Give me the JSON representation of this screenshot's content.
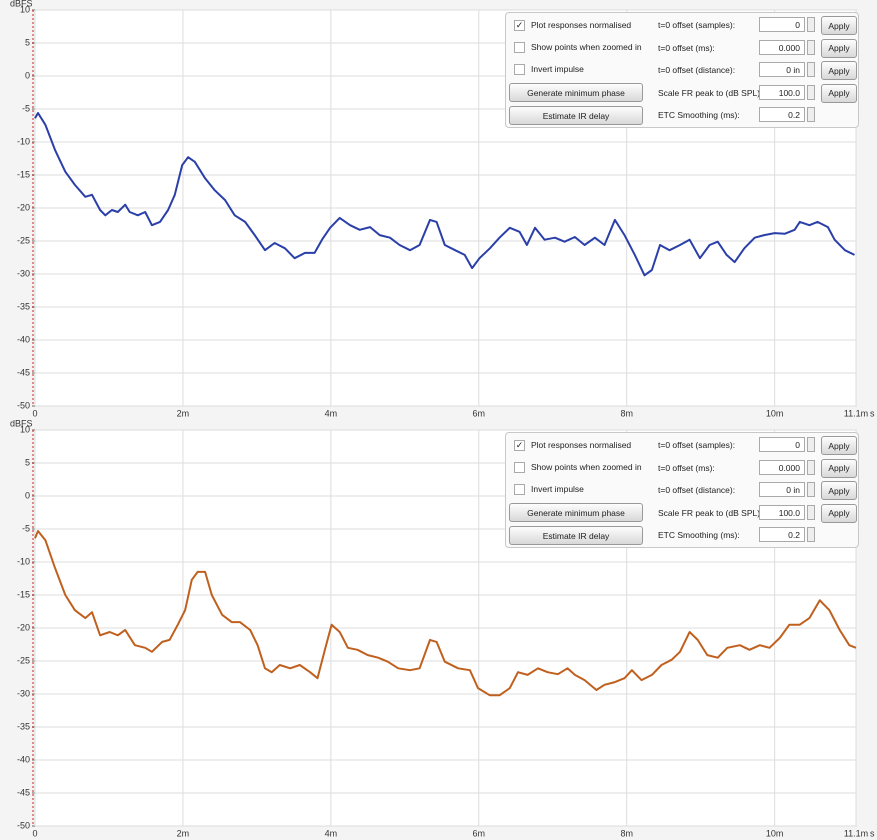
{
  "chart_data": [
    {
      "type": "line",
      "y_label": "dBFS",
      "x_label": "s",
      "xlim": [
        0,
        11.1
      ],
      "ylim": [
        -50,
        10
      ],
      "xticks": [
        0,
        {
          "value": 2,
          "label": "2m"
        },
        {
          "value": 4,
          "label": "4m"
        },
        {
          "value": 6,
          "label": "6m"
        },
        {
          "value": 8,
          "label": "8m"
        },
        {
          "value": 10,
          "label": "10m"
        },
        {
          "value": 11.1,
          "label": "11.1m"
        }
      ],
      "yticks": [
        10,
        5,
        0,
        -5,
        -10,
        -15,
        -20,
        -25,
        -30,
        -35,
        -40,
        -45,
        -50
      ],
      "grid": true,
      "color": "#2a3fa8",
      "x": [
        0.0,
        0.04,
        0.14,
        0.27,
        0.41,
        0.54,
        0.68,
        0.77,
        0.88,
        0.95,
        1.04,
        1.12,
        1.22,
        1.28,
        1.39,
        1.49,
        1.58,
        1.69,
        1.8,
        1.89,
        1.99,
        2.07,
        2.16,
        2.3,
        2.43,
        2.57,
        2.7,
        2.84,
        2.97,
        3.11,
        3.24,
        3.38,
        3.51,
        3.65,
        3.78,
        3.88,
        3.99,
        4.12,
        4.26,
        4.39,
        4.53,
        4.66,
        4.8,
        4.93,
        5.07,
        5.2,
        5.34,
        5.43,
        5.54,
        5.68,
        5.81,
        5.91,
        6.01,
        6.15,
        6.28,
        6.42,
        6.55,
        6.65,
        6.76,
        6.89,
        7.03,
        7.16,
        7.3,
        7.43,
        7.57,
        7.7,
        7.84,
        7.97,
        8.11,
        8.24,
        8.34,
        8.45,
        8.58,
        8.72,
        8.85,
        8.99,
        9.12,
        9.23,
        9.35,
        9.46,
        9.59,
        9.73,
        9.86,
        10.0,
        10.14,
        10.27,
        10.34,
        10.47,
        10.58,
        10.72,
        10.81,
        10.95,
        11.08
      ],
      "values": [
        -6.4,
        -5.6,
        -7.4,
        -11.2,
        -14.5,
        -16.5,
        -18.3,
        -18.0,
        -20.3,
        -21.1,
        -20.3,
        -20.6,
        -19.5,
        -20.6,
        -21.1,
        -20.6,
        -22.6,
        -22.1,
        -20.3,
        -18.0,
        -13.5,
        -12.3,
        -13.0,
        -15.5,
        -17.3,
        -18.8,
        -21.1,
        -22.1,
        -24.1,
        -26.4,
        -25.3,
        -26.1,
        -27.6,
        -26.8,
        -26.8,
        -24.8,
        -23.0,
        -21.5,
        -22.6,
        -23.3,
        -22.9,
        -24.1,
        -24.5,
        -25.6,
        -26.4,
        -25.6,
        -21.8,
        -22.1,
        -25.6,
        -26.4,
        -27.1,
        -29.1,
        -27.6,
        -26.1,
        -24.5,
        -23.0,
        -23.6,
        -25.6,
        -23.0,
        -24.8,
        -24.5,
        -25.1,
        -24.4,
        -25.6,
        -24.5,
        -25.6,
        -21.8,
        -24.1,
        -27.1,
        -30.2,
        -29.4,
        -25.6,
        -26.4,
        -25.6,
        -24.8,
        -27.6,
        -25.6,
        -25.1,
        -27.1,
        -28.2,
        -26.1,
        -24.5,
        -24.1,
        -23.8,
        -23.9,
        -23.3,
        -22.1,
        -22.6,
        -22.1,
        -22.9,
        -24.8,
        -26.4,
        -27.1
      ]
    },
    {
      "type": "line",
      "y_label": "dBFS",
      "x_label": "s",
      "xlim": [
        0,
        11.1
      ],
      "ylim": [
        -50,
        10
      ],
      "xticks": [
        0,
        {
          "value": 2,
          "label": "2m"
        },
        {
          "value": 4,
          "label": "4m"
        },
        {
          "value": 6,
          "label": "6m"
        },
        {
          "value": 8,
          "label": "8m"
        },
        {
          "value": 10,
          "label": "10m"
        },
        {
          "value": 11.1,
          "label": "11.1m"
        }
      ],
      "yticks": [
        10,
        5,
        0,
        -5,
        -10,
        -15,
        -20,
        -25,
        -30,
        -35,
        -40,
        -45,
        -50
      ],
      "grid": true,
      "color": "#c0601e",
      "x": [
        0.0,
        0.04,
        0.14,
        0.27,
        0.41,
        0.54,
        0.68,
        0.77,
        0.88,
        1.01,
        1.12,
        1.22,
        1.35,
        1.49,
        1.58,
        1.72,
        1.82,
        1.93,
        2.03,
        2.12,
        2.2,
        2.3,
        2.39,
        2.53,
        2.66,
        2.77,
        2.91,
        3.01,
        3.11,
        3.2,
        3.31,
        3.45,
        3.58,
        3.72,
        3.82,
        3.92,
        4.01,
        4.12,
        4.23,
        4.36,
        4.5,
        4.64,
        4.77,
        4.91,
        5.07,
        5.2,
        5.34,
        5.43,
        5.54,
        5.72,
        5.88,
        5.99,
        6.15,
        6.28,
        6.42,
        6.53,
        6.66,
        6.8,
        6.93,
        7.07,
        7.2,
        7.3,
        7.43,
        7.59,
        7.7,
        7.84,
        7.97,
        8.07,
        8.2,
        8.34,
        8.47,
        8.61,
        8.72,
        8.85,
        8.96,
        9.09,
        9.23,
        9.36,
        9.53,
        9.66,
        9.8,
        9.93,
        10.07,
        10.2,
        10.34,
        10.47,
        10.61,
        10.74,
        10.88,
        11.01,
        11.1
      ],
      "values": [
        -6.4,
        -5.3,
        -6.7,
        -10.9,
        -15.0,
        -17.3,
        -18.5,
        -17.6,
        -21.1,
        -20.6,
        -21.1,
        -20.3,
        -22.6,
        -23.0,
        -23.6,
        -22.1,
        -21.8,
        -19.5,
        -17.3,
        -12.7,
        -11.5,
        -11.5,
        -15.0,
        -18.0,
        -19.1,
        -19.1,
        -20.3,
        -22.6,
        -26.1,
        -26.7,
        -25.6,
        -26.1,
        -25.6,
        -26.7,
        -27.6,
        -23.3,
        -19.5,
        -20.6,
        -23.0,
        -23.3,
        -24.1,
        -24.5,
        -25.1,
        -26.1,
        -26.4,
        -26.1,
        -21.8,
        -22.1,
        -25.1,
        -26.1,
        -26.4,
        -29.1,
        -30.2,
        -30.2,
        -29.1,
        -26.7,
        -27.1,
        -26.1,
        -26.7,
        -27.0,
        -26.1,
        -27.1,
        -27.9,
        -29.4,
        -28.6,
        -28.2,
        -27.6,
        -26.4,
        -27.9,
        -27.1,
        -25.6,
        -24.8,
        -23.6,
        -20.6,
        -21.8,
        -24.1,
        -24.5,
        -23.0,
        -22.6,
        -23.3,
        -22.6,
        -23.0,
        -21.5,
        -19.5,
        -19.5,
        -18.5,
        -15.8,
        -17.3,
        -20.3,
        -22.6,
        -23.0
      ]
    }
  ],
  "panels": [
    {
      "checkboxes": [
        {
          "label": "Plot responses normalised",
          "checked": true
        },
        {
          "label": "Show points when zoomed in",
          "checked": false
        },
        {
          "label": "Invert impulse",
          "checked": false
        }
      ],
      "buttons": [
        "Generate minimum phase",
        "Estimate IR delay"
      ],
      "fields": [
        {
          "label": "t=0 offset (samples):",
          "value": "0",
          "button": "Apply"
        },
        {
          "label": "t=0 offset (ms):",
          "value": "0.000",
          "button": "Apply"
        },
        {
          "label": "t=0 offset (distance):",
          "value": "0 in",
          "button": "Apply"
        },
        {
          "label": "Scale FR peak to (dB SPL):",
          "value": "100.0",
          "button": "Apply"
        },
        {
          "label": "ETC Smoothing (ms):",
          "value": "0.2"
        }
      ]
    },
    {
      "checkboxes": [
        {
          "label": "Plot responses normalised",
          "checked": true
        },
        {
          "label": "Show points when zoomed in",
          "checked": false
        },
        {
          "label": "Invert impulse",
          "checked": false
        }
      ],
      "buttons": [
        "Generate minimum phase",
        "Estimate IR delay"
      ],
      "fields": [
        {
          "label": "t=0 offset (samples):",
          "value": "0",
          "button": "Apply"
        },
        {
          "label": "t=0 offset (ms):",
          "value": "0.000",
          "button": "Apply"
        },
        {
          "label": "t=0 offset (distance):",
          "value": "0 in",
          "button": "Apply"
        },
        {
          "label": "Scale FR peak to (dB SPL):",
          "value": "100.0",
          "button": "Apply"
        },
        {
          "label": "ETC Smoothing (ms):",
          "value": "0.2"
        }
      ]
    }
  ]
}
